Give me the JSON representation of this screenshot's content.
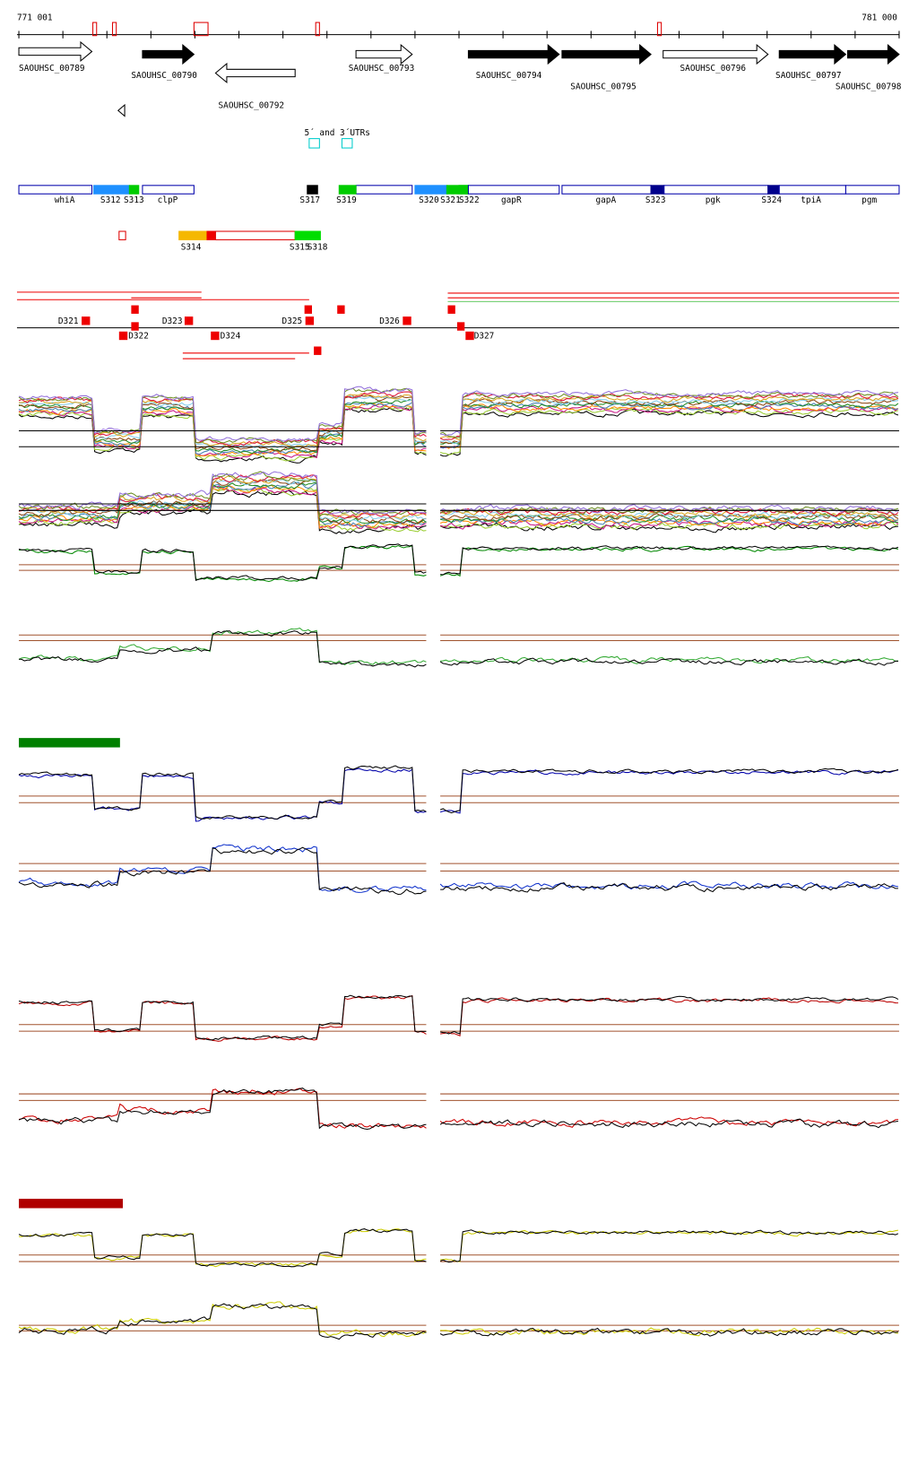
{
  "ruler": {
    "start": "771 001",
    "end": "781 000"
  },
  "genes": [
    "SAOUHSC_00789",
    "SAOUHSC_00790",
    "SAOUHSC_00792",
    "SAOUHSC_00793",
    "SAOUHSC_00794",
    "SAOUHSC_00795",
    "SAOUHSC_00796",
    "SAOUHSC_00797",
    "SAOUHSC_00798"
  ],
  "annotation": "5´ and 3´UTRs",
  "features": [
    "whiA",
    "S312",
    "S313",
    "clpP",
    "S317",
    "S319",
    "S320",
    "S321",
    "S322",
    "gapR",
    "gapA",
    "S323",
    "pgk",
    "S324",
    "tpiA",
    "pgm"
  ],
  "features2": [
    "S314",
    "S315",
    "S318"
  ],
  "deletions": [
    "D321",
    "D322",
    "D323",
    "D324",
    "D325",
    "D326",
    "D327"
  ]
}
